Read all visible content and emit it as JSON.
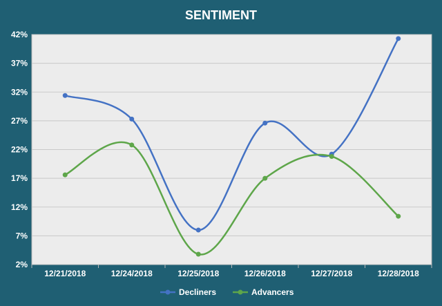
{
  "chart_data": {
    "type": "line",
    "title": "SENTIMENT",
    "categories": [
      "12/21/2018",
      "12/24/2018",
      "12/25/2018",
      "12/26/2018",
      "12/27/2018",
      "12/28/2018"
    ],
    "y_ticks": [
      "2%",
      "7%",
      "12%",
      "17%",
      "22%",
      "27%",
      "32%",
      "37%",
      "42%"
    ],
    "ylim": [
      2,
      42
    ],
    "grid": true,
    "legend_position": "bottom",
    "series": [
      {
        "name": "Decliners",
        "color": "#4472c4",
        "values": [
          31.4,
          27.3,
          8.0,
          26.6,
          21.2,
          41.3
        ]
      },
      {
        "name": "Advancers",
        "color": "#5ea64a",
        "values": [
          17.6,
          22.8,
          3.8,
          17.0,
          20.8,
          10.4
        ]
      }
    ],
    "colors": {
      "background": "#1f5f73",
      "plot_area": "#ececec",
      "gridline": "#c9c9c9",
      "text": "#ffffff"
    }
  }
}
